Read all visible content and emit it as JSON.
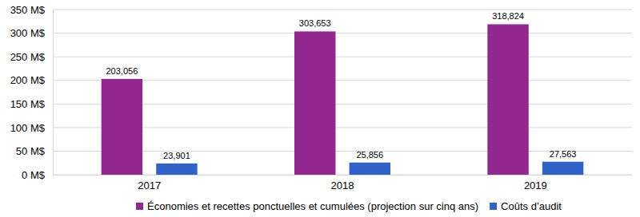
{
  "chart_data": {
    "type": "bar",
    "categories": [
      "2017",
      "2018",
      "2019"
    ],
    "series": [
      {
        "name": "Économies et recettes ponctuelles et cumulées (projection sur cinq ans)",
        "color": "#92278f",
        "values": [
          203.056,
          303.653,
          318.824
        ],
        "value_labels": [
          "203,056",
          "303,653",
          "318,824"
        ]
      },
      {
        "name": "Coûts d’audit",
        "color": "#3162c8",
        "values": [
          23.901,
          25.856,
          27.563
        ],
        "value_labels": [
          "23,901",
          "25,856",
          "27,563"
        ]
      }
    ],
    "ylim": [
      0,
      350
    ],
    "yticks": [
      {
        "value": 0,
        "label": "0 M$"
      },
      {
        "value": 50,
        "label": "50 M$"
      },
      {
        "value": 100,
        "label": "100 M$"
      },
      {
        "value": 150,
        "label": "150 M$"
      },
      {
        "value": 200,
        "label": "200 M$"
      },
      {
        "value": 250,
        "label": "250 M$"
      },
      {
        "value": 300,
        "label": "300 M$"
      },
      {
        "value": 350,
        "label": "350 M$"
      }
    ],
    "grid": true,
    "legend": "bottom",
    "data_labels": true
  }
}
